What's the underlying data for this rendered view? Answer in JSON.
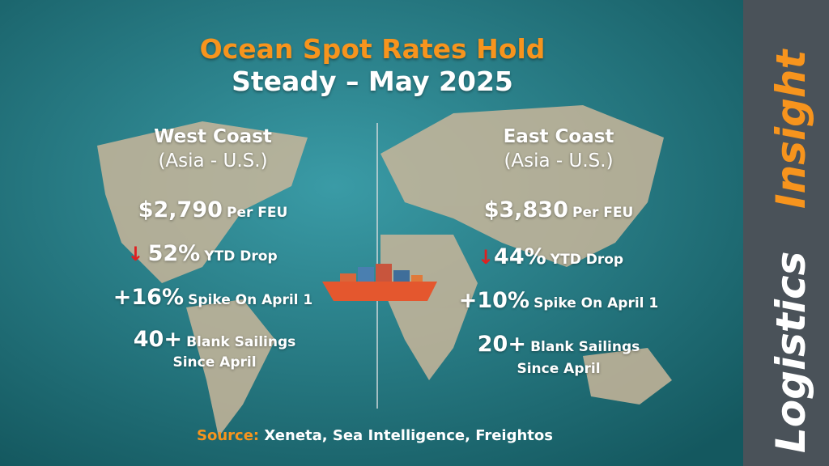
{
  "title": {
    "line1": "Ocean Spot Rates Hold",
    "line2": "Steady – May 2025"
  },
  "west": {
    "heading": "West Coast",
    "route": "(Asia - U.S.)",
    "rate": {
      "value": "$2,790",
      "unit": "Per FEU"
    },
    "drop": {
      "value": "52%",
      "label": "YTD Drop"
    },
    "spike": {
      "value": "+16%",
      "label": "Spike On April 1"
    },
    "blank_sailings": {
      "value": "40+",
      "label": "Blank Sailings",
      "label_line2": "Since April"
    }
  },
  "east": {
    "heading": "East Coast",
    "route": "(Asia - U.S.)",
    "rate": {
      "value": "$3,830",
      "unit": "Per FEU"
    },
    "drop": {
      "value": "44%",
      "label": "YTD Drop"
    },
    "spike": {
      "value": "+10%",
      "label": "Spike On April 1"
    },
    "blank_sailings": {
      "value": "20+",
      "label": "Blank Sailings",
      "label_line2": "Since April"
    }
  },
  "source": {
    "label": "Source:",
    "text": "Xeneta, Sea Intelligence, Freightos"
  },
  "sidebar": {
    "word1": "Logistics",
    "word2": "Insight"
  }
}
